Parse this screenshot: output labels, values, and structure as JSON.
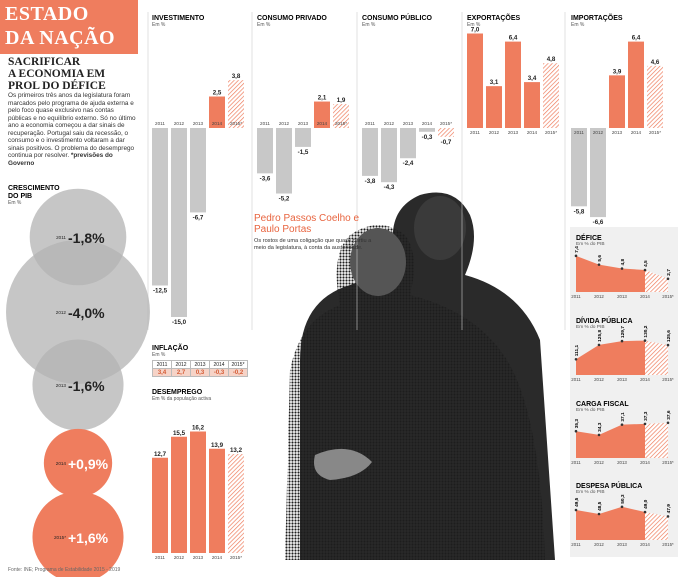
{
  "header": {
    "title_line1": "ESTADO",
    "title_line2": "DA NAÇÃO",
    "subtitle_line1": "SACRIFICAR",
    "subtitle_line2": "A ECONOMIA EM",
    "subtitle_line3": "PROL DO DÉFICE",
    "intro": "Os primeiros três anos da legislatura foram marcados pelo programa de ajuda externa e pelo foco quase exclusivo nas contas públicas e no equilíbrio externo. Só no último ano a economia começou a dar sinais de recuperação. Portugal saiu da recessão, o consumo e o investimento voltaram a dar sinais positivos. O problema do desemprego continua por resolver.",
    "intro_note": "*previsões do Governo"
  },
  "caption": {
    "name": "Pedro Passos Coelho e Paulo Portas",
    "text": "Os rostos de uma coligação que quase partiu a meio da legislatura, à conta da austeridade."
  },
  "source": "Fonte: INE; Programa de Estabilidade 2015 - 2019",
  "photo": {
    "description_icon": "photo-embrace-icon"
  },
  "colors": {
    "accent": "#ef7d5e",
    "grey": "#c8c8c8",
    "bubble": "#b3b3b3"
  },
  "chart_data": [
    {
      "id": "crescimento",
      "type": "bubble",
      "title": "CRESCIMENTO DO PIB",
      "unit": "Em %",
      "categories": [
        "2011",
        "2012",
        "2013",
        "2014",
        "2015*"
      ],
      "values": [
        -1.8,
        -4.0,
        -1.6,
        0.9,
        1.6
      ],
      "labels": [
        "-1,8%",
        "-4,0%",
        "-1,6%",
        "+0,9%",
        "+1,6%"
      ]
    },
    {
      "id": "investimento",
      "type": "bar",
      "title": "INVESTIMENTO",
      "unit": "Em %",
      "categories": [
        "2011",
        "2012",
        "2013",
        "2014",
        "2015*"
      ],
      "values": [
        -12.5,
        -15.0,
        -6.7,
        2.5,
        3.8
      ],
      "labels": [
        "-12,5",
        "-15,0",
        "-6,7",
        "2,5",
        "3,8"
      ]
    },
    {
      "id": "consumo_privado",
      "type": "bar",
      "title": "CONSUMO PRIVADO",
      "unit": "Em %",
      "categories": [
        "2011",
        "2012",
        "2013",
        "2014",
        "2015*"
      ],
      "values": [
        -3.6,
        -5.2,
        -1.5,
        2.1,
        1.9
      ],
      "labels": [
        "-3,6",
        "-5,2",
        "-1,5",
        "2,1",
        "1,9"
      ]
    },
    {
      "id": "consumo_publico",
      "type": "bar",
      "title": "CONSUMO PÚBLICO",
      "unit": "Em %",
      "categories": [
        "2011",
        "2012",
        "2013",
        "2014",
        "2015*"
      ],
      "values": [
        -3.8,
        -4.3,
        -2.4,
        -0.3,
        -0.7
      ],
      "labels": [
        "-3,8",
        "-4,3",
        "-2,4",
        "-0,3",
        "-0,7"
      ]
    },
    {
      "id": "exportacoes",
      "type": "bar",
      "title": "EXPORTAÇÕES",
      "unit": "Em %",
      "categories": [
        "2011",
        "2012",
        "2013",
        "2014",
        "2015*"
      ],
      "values": [
        7.0,
        3.1,
        6.4,
        3.4,
        4.8
      ],
      "labels": [
        "7,0",
        "3,1",
        "6,4",
        "3,4",
        "4,8"
      ]
    },
    {
      "id": "importacoes",
      "type": "bar",
      "title": "IMPORTAÇÕES",
      "unit": "Em %",
      "categories": [
        "2011",
        "2012",
        "2013",
        "2014",
        "2015*"
      ],
      "values": [
        -5.8,
        -6.6,
        3.9,
        6.4,
        4.6
      ],
      "labels": [
        "-5,8",
        "-6,6",
        "3,9",
        "6,4",
        "4,6"
      ]
    },
    {
      "id": "inflacao",
      "type": "table",
      "title": "INFLAÇÃO",
      "unit": "Em %",
      "categories": [
        "2011",
        "2012",
        "2013",
        "2014",
        "2015*"
      ],
      "values": [
        3.4,
        2.7,
        0.3,
        -0.3,
        -0.2
      ],
      "labels": [
        "3,4",
        "2,7",
        "0,3",
        "-0,3",
        "-0,2"
      ]
    },
    {
      "id": "desemprego",
      "type": "bar",
      "title": "DESEMPREGO",
      "unit": "Em % da população activa",
      "categories": [
        "2011",
        "2012",
        "2013",
        "2014",
        "2015*"
      ],
      "values": [
        12.7,
        15.5,
        16.2,
        13.9,
        13.2
      ],
      "labels": [
        "12,7",
        "15,5",
        "16,2",
        "13,9",
        "13,2"
      ]
    },
    {
      "id": "defice",
      "type": "area",
      "title": "DÉFICE",
      "unit": "Em % do PIB",
      "categories": [
        "2011",
        "2012",
        "2013",
        "2014",
        "2015*"
      ],
      "values": [
        7.4,
        5.6,
        4.8,
        4.5,
        2.7
      ],
      "labels": [
        "7,4",
        "5,6",
        "4,8",
        "4,5",
        "2,7"
      ]
    },
    {
      "id": "divida",
      "type": "area",
      "title": "DÍVIDA PÚBLICA",
      "unit": "Em % do PIB",
      "categories": [
        "2011",
        "2012",
        "2013",
        "2014",
        "2015*"
      ],
      "values": [
        111.1,
        125.8,
        129.7,
        130.2,
        125.6
      ],
      "labels": [
        "111,1",
        "125,8",
        "129,7",
        "130,2",
        "125,6"
      ]
    },
    {
      "id": "carga_fiscal",
      "type": "area",
      "title": "CARGA FISCAL",
      "unit": "Em % do PIB",
      "categories": [
        "2011",
        "2012",
        "2013",
        "2014",
        "2015*"
      ],
      "values": [
        35.3,
        34.3,
        37.1,
        37.3,
        37.6
      ],
      "labels": [
        "35,3",
        "34,3",
        "37,1",
        "37,3",
        "37,6"
      ]
    },
    {
      "id": "despesa",
      "type": "area",
      "title": "DESPESA PÚBLICA",
      "unit": "Em % do PIB",
      "categories": [
        "2011",
        "2012",
        "2013",
        "2014",
        "2015*"
      ],
      "values": [
        49.5,
        48.5,
        50.3,
        49.0,
        47.9
      ],
      "labels": [
        "49,5",
        "48,5",
        "50,3",
        "49,0",
        "47,9"
      ]
    }
  ]
}
